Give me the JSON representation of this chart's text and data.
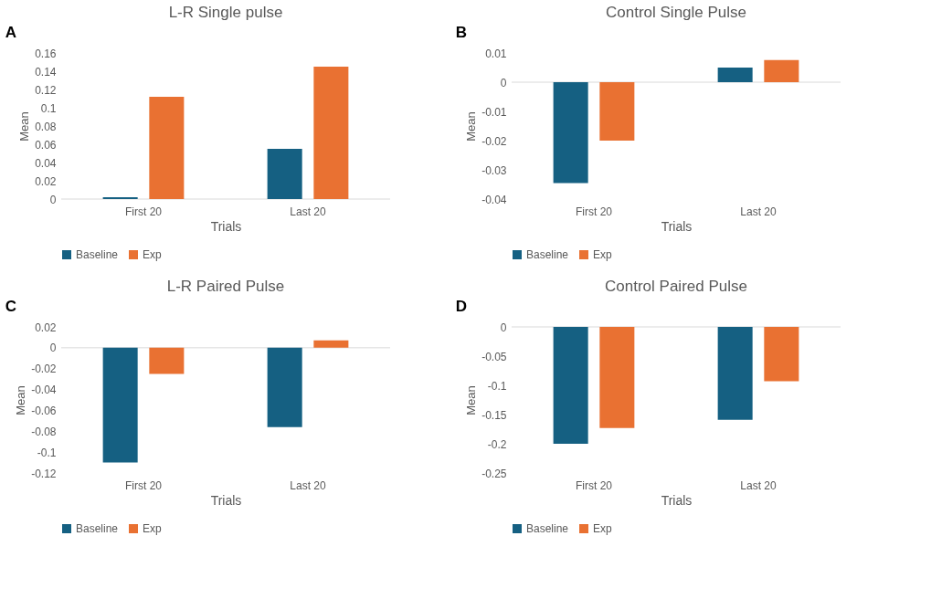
{
  "chart_data": [
    {
      "type": "bar",
      "title": "L-R Single pulse",
      "xlabel": "Trials",
      "ylabel": "Mean",
      "annotations": [
        "A"
      ],
      "categories": [
        "First 20",
        "Last 20"
      ],
      "ylim": [
        0,
        0.16
      ],
      "yticks": [
        0,
        0.02,
        0.04,
        0.06,
        0.08,
        0.1,
        0.12,
        0.14,
        0.16
      ],
      "legend": "bottom",
      "grid": false,
      "series": [
        {
          "name": "Baseline",
          "color": "#156082",
          "values": [
            0.002,
            0.055
          ]
        },
        {
          "name": "Exp",
          "color": "#e97132",
          "values": [
            0.112,
            0.145
          ]
        }
      ]
    },
    {
      "type": "bar",
      "title": "Control Single Pulse",
      "xlabel": "Trials",
      "ylabel": "Mean",
      "annotations": [
        "B"
      ],
      "categories": [
        "First 20",
        "Last 20"
      ],
      "ylim": [
        -0.04,
        0.01
      ],
      "yticks": [
        -0.04,
        -0.03,
        -0.02,
        -0.01,
        0,
        0.01
      ],
      "legend": "bottom",
      "series": [
        {
          "name": "Baseline",
          "color": "#156082",
          "values": [
            -0.0345,
            0.005
          ]
        },
        {
          "name": "Exp",
          "color": "#e97132",
          "values": [
            -0.02,
            0.0076
          ]
        }
      ]
    },
    {
      "type": "bar",
      "title": "L-R Paired Pulse",
      "xlabel": "Trials",
      "ylabel": "Mean",
      "annotations": [
        "C"
      ],
      "categories": [
        "First 20",
        "Last 20"
      ],
      "ylim": [
        -0.12,
        0.02
      ],
      "yticks": [
        -0.12,
        -0.1,
        -0.08,
        -0.06,
        -0.04,
        -0.02,
        0,
        0.02
      ],
      "legend": "bottom",
      "series": [
        {
          "name": "Baseline",
          "color": "#156082",
          "values": [
            -0.11,
            -0.076
          ]
        },
        {
          "name": "Exp",
          "color": "#e97132",
          "values": [
            -0.025,
            0.007
          ]
        }
      ]
    },
    {
      "type": "bar",
      "title": "Control Paired Pulse",
      "xlabel": "Trials",
      "ylabel": "Mean",
      "annotations": [
        "D"
      ],
      "categories": [
        "First 20",
        "Last 20"
      ],
      "ylim": [
        -0.25,
        0
      ],
      "yticks": [
        -0.25,
        -0.2,
        -0.15,
        -0.1,
        -0.05,
        0
      ],
      "legend": "bottom",
      "grid": false,
      "series": [
        {
          "name": "Baseline",
          "color": "#156082",
          "values": [
            -0.2,
            -0.159
          ]
        },
        {
          "name": "Exp",
          "color": "#e97132",
          "values": [
            -0.173,
            -0.093
          ]
        }
      ]
    }
  ]
}
